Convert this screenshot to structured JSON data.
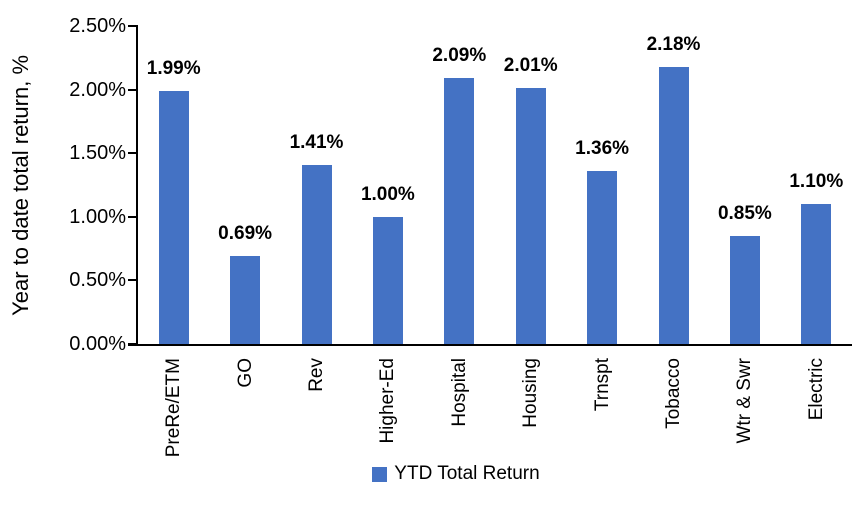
{
  "chart_data": {
    "type": "bar",
    "title": "",
    "ylabel": "Year to date total return, %",
    "xlabel": "",
    "categories": [
      "PreRe/ETM",
      "GO",
      "Rev",
      "Higher-Ed",
      "Hospital",
      "Housing",
      "Trnspt",
      "Tobacco",
      "Wtr & Swr",
      "Electric"
    ],
    "series": [
      {
        "name": "YTD Total Return",
        "values": [
          1.99,
          0.69,
          1.41,
          1.0,
          2.09,
          2.01,
          1.36,
          2.18,
          0.85,
          1.1
        ],
        "data_labels": [
          "1.99%",
          "0.69%",
          "1.41%",
          "1.00%",
          "2.09%",
          "2.01%",
          "1.36%",
          "2.18%",
          "0.85%",
          "1.10%"
        ]
      }
    ],
    "y_ticks": [
      {
        "label": "0.00%",
        "value": 0.0
      },
      {
        "label": "0.50%",
        "value": 0.5
      },
      {
        "label": "1.00%",
        "value": 1.0
      },
      {
        "label": "1.50%",
        "value": 1.5
      },
      {
        "label": "2.00%",
        "value": 2.0
      },
      {
        "label": "2.50%",
        "value": 2.5
      }
    ],
    "ylim": [
      0,
      2.5
    ],
    "grid": false,
    "legend": {
      "label": "YTD Total Return",
      "position": "bottom"
    },
    "colors": {
      "bar": "#4472C4",
      "axis": "#000000",
      "text": "#000000"
    }
  }
}
